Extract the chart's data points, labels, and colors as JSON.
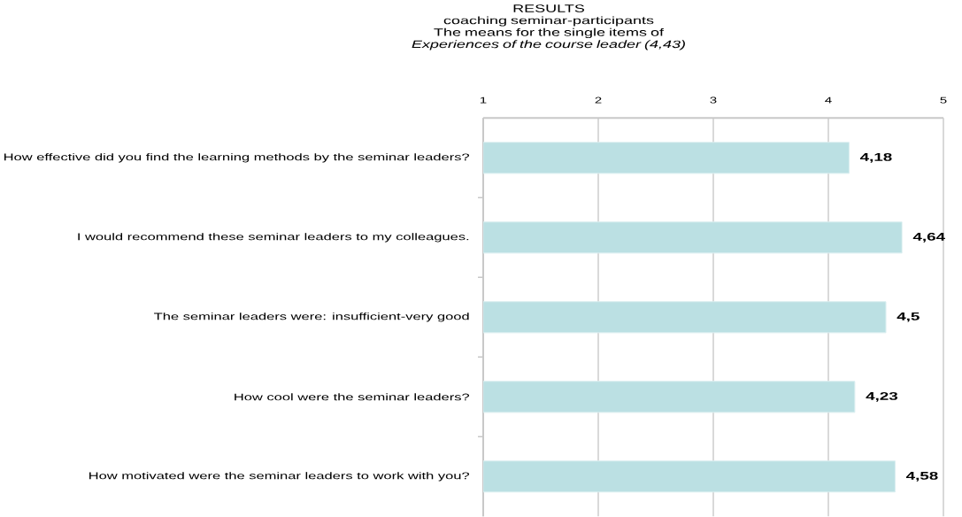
{
  "chart_data": {
    "type": "bar",
    "orientation": "horizontal",
    "title": "RESULTS",
    "subtitle": "coaching seminar-participants",
    "annotations": [
      "The means for the single items of *Experiences of the course leader (4,43)*"
    ],
    "categories": [
      "How effective did you find the learning methods by the seminar leaders?",
      "I would recommend these seminar leaders to my colleagues.",
      "The seminar leaders were: insufficient-very good",
      "How cool were the seminar leaders?",
      "How motivated were the seminar leaders to work with you?"
    ],
    "values": [
      4.18,
      4.64,
      4.5,
      4.23,
      4.58
    ],
    "value_labels": [
      "4,18",
      "4,64",
      "4,5",
      "4,23",
      "4,58"
    ],
    "color": "#bbe0e3",
    "xlim": [
      1,
      5
    ],
    "xticks": [
      1,
      2,
      3,
      4,
      5
    ],
    "grid": "x"
  }
}
